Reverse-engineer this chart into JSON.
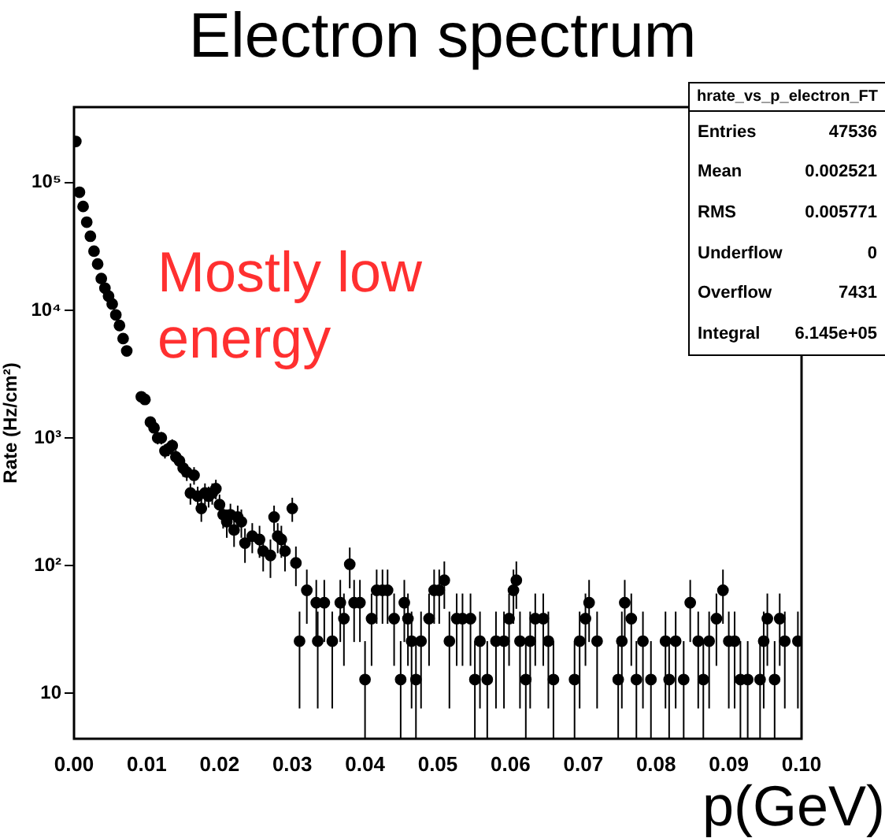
{
  "chart_data": {
    "type": "scatter",
    "title": "Electron spectrum",
    "xlabel": "p(GeV)",
    "ylabel": "Rate (Hz/cm²)",
    "annotations": [
      "Mostly low energy",
      "hrate_vs_p_electron_FT",
      "Entries",
      "47536",
      "Mean",
      "0.002521",
      "RMS",
      "0.005771",
      "Underflow",
      "0",
      "Overflow",
      "7431",
      "Integral",
      "6.145e+05"
    ],
    "log": "y",
    "marker": "circle",
    "color": "#000000",
    "xlim": [
      0,
      0.1
    ],
    "xticks": [
      {
        "value": 0,
        "label": "0.00"
      },
      {
        "value": 0.01,
        "label": "0.01"
      },
      {
        "value": 0.02,
        "label": "0.02"
      },
      {
        "value": 0.03,
        "label": "0.03"
      },
      {
        "value": 0.04,
        "label": "0.04"
      },
      {
        "value": 0.05,
        "label": "0.05"
      },
      {
        "value": 0.06,
        "label": "0.06"
      },
      {
        "value": 0.07,
        "label": "0.07"
      },
      {
        "value": 0.08,
        "label": "0.08"
      },
      {
        "value": 0.09,
        "label": "0.09"
      },
      {
        "value": 0.1,
        "label": "0.10"
      }
    ],
    "ylim": [
      4.4,
      390000
    ],
    "yticks": [
      10,
      {
        "value": 100,
        "label": "10²"
      },
      {
        "value": 1000,
        "label": "10³"
      },
      {
        "value": 10000,
        "label": "10⁴"
      },
      {
        "value": 100000,
        "label": "10⁵"
      }
    ],
    "x": [
      0.00025,
      0.00075,
      0.00125,
      0.00175,
      0.00225,
      0.00275,
      0.00325,
      0.00375,
      0.00425,
      0.00475,
      0.00525,
      0.00575,
      0.00625,
      0.00675,
      0.00725,
      0.00925,
      0.00975,
      0.0105,
      0.011,
      0.0115,
      0.012,
      0.0125,
      0.013,
      0.0135,
      0.014,
      0.0145,
      0.015,
      0.0155,
      0.016,
      0.0165,
      0.017,
      0.0175,
      0.018,
      0.0185,
      0.019,
      0.0195,
      0.02,
      0.0205,
      0.021,
      0.0215,
      0.022,
      0.0225,
      0.023,
      0.0235,
      0.0245,
      0.0255,
      0.026,
      0.027,
      0.0275,
      0.028,
      0.0285,
      0.029,
      0.03,
      0.0305,
      0.031,
      0.032,
      0.0333,
      0.0335,
      0.0344,
      0.0355,
      0.0366,
      0.0371,
      0.0379,
      0.0385,
      0.0393,
      0.04,
      0.0409,
      0.0416,
      0.0424,
      0.0431,
      0.044,
      0.0449,
      0.0454,
      0.0459,
      0.0464,
      0.047,
      0.0477,
      0.0488,
      0.0495,
      0.0502,
      0.0509,
      0.0516,
      0.0526,
      0.0534,
      0.0545,
      0.0551,
      0.0558,
      0.0568,
      0.058,
      0.0591,
      0.0598,
      0.0604,
      0.0608,
      0.0613,
      0.0621,
      0.0627,
      0.0634,
      0.0645,
      0.0652,
      0.0659,
      0.0688,
      0.0695,
      0.0703,
      0.0708,
      0.0719,
      0.0748,
      0.0753,
      0.0757,
      0.0766,
      0.0773,
      0.0782,
      0.0793,
      0.0813,
      0.0818,
      0.0827,
      0.0838,
      0.0847,
      0.0858,
      0.0865,
      0.0873,
      0.0883,
      0.0892,
      0.09,
      0.0908,
      0.0916,
      0.0926,
      0.0943,
      0.0948,
      0.0953,
      0.0963,
      0.097,
      0.0977,
      0.0995
    ],
    "values": [
      210000,
      84000,
      65000,
      49000,
      38000,
      29000,
      23000,
      17700,
      14900,
      12900,
      11200,
      9200,
      7600,
      6000,
      4800,
      2100,
      2000,
      1330,
      1200,
      1000,
      1000,
      790,
      820,
      870,
      710,
      660,
      580,
      540,
      370,
      510,
      350,
      280,
      370,
      350,
      370,
      400,
      300,
      250,
      220,
      250,
      190,
      240,
      220,
      150,
      170,
      160,
      130,
      120,
      240,
      170,
      160,
      130,
      280,
      105,
      25.6,
      64,
      51.2,
      25.6,
      51.2,
      25.6,
      51.2,
      38.4,
      102.4,
      51.2,
      51.2,
      12.8,
      38.4,
      64,
      64,
      64,
      38.4,
      12.8,
      51.2,
      38.4,
      25.6,
      12.8,
      25.6,
      38.4,
      64,
      64,
      76.8,
      25.6,
      38.4,
      38.4,
      38.4,
      12.8,
      25.6,
      12.8,
      25.6,
      25.6,
      38.4,
      64,
      76.8,
      25.6,
      12.8,
      25.6,
      38.4,
      38.4,
      25.6,
      12.8,
      12.8,
      25.6,
      38.4,
      51.2,
      25.6,
      12.8,
      25.6,
      51.2,
      38.4,
      12.8,
      25.6,
      12.8,
      25.6,
      12.8,
      25.6,
      12.8,
      51.2,
      25.6,
      12.8,
      25.6,
      38.4,
      64,
      25.6,
      25.6,
      12.8,
      12.8,
      12.8,
      25.6,
      38.4,
      12.8,
      38.4,
      25.6,
      25.6
    ],
    "errors": [
      null,
      null,
      null,
      null,
      null,
      null,
      null,
      null,
      null,
      null,
      null,
      null,
      null,
      null,
      null,
      null,
      null,
      null,
      null,
      110,
      110,
      100,
      100,
      105,
      95,
      90,
      85,
      80,
      70,
      80,
      65,
      60,
      70,
      65,
      70,
      70,
      60,
      55,
      55,
      55,
      50,
      55,
      55,
      45,
      45,
      45,
      40,
      40,
      55,
      45,
      45,
      40,
      60,
      36,
      18,
      29,
      26,
      18,
      26,
      18,
      26,
      22,
      36,
      26,
      26,
      [
        4.4,
        25.6
      ],
      22,
      29,
      29,
      29,
      22,
      [
        4.4,
        25.6
      ],
      26,
      22,
      18,
      [
        4.4,
        25.6
      ],
      18,
      22,
      29,
      29,
      31,
      18,
      22,
      22,
      22,
      [
        4.4,
        25.6
      ],
      18,
      [
        4.4,
        25.6
      ],
      18,
      18,
      22,
      29,
      31,
      18,
      [
        4.4,
        25.6
      ],
      18,
      22,
      22,
      18,
      [
        4.4,
        25.6
      ],
      [
        4.4,
        25.6
      ],
      18,
      22,
      26,
      18,
      [
        4.4,
        25.6
      ],
      18,
      26,
      22,
      [
        4.4,
        25.6
      ],
      18,
      [
        4.4,
        25.6
      ],
      18,
      [
        4.4,
        25.6
      ],
      18,
      [
        4.4,
        25.6
      ],
      26,
      18,
      [
        4.4,
        25.6
      ],
      18,
      22,
      29,
      18,
      18,
      [
        4.4,
        25.6
      ],
      [
        4.4,
        25.6
      ],
      [
        4.4,
        25.6
      ],
      18,
      22,
      [
        4.4,
        25.6
      ],
      22,
      18,
      18
    ]
  }
}
